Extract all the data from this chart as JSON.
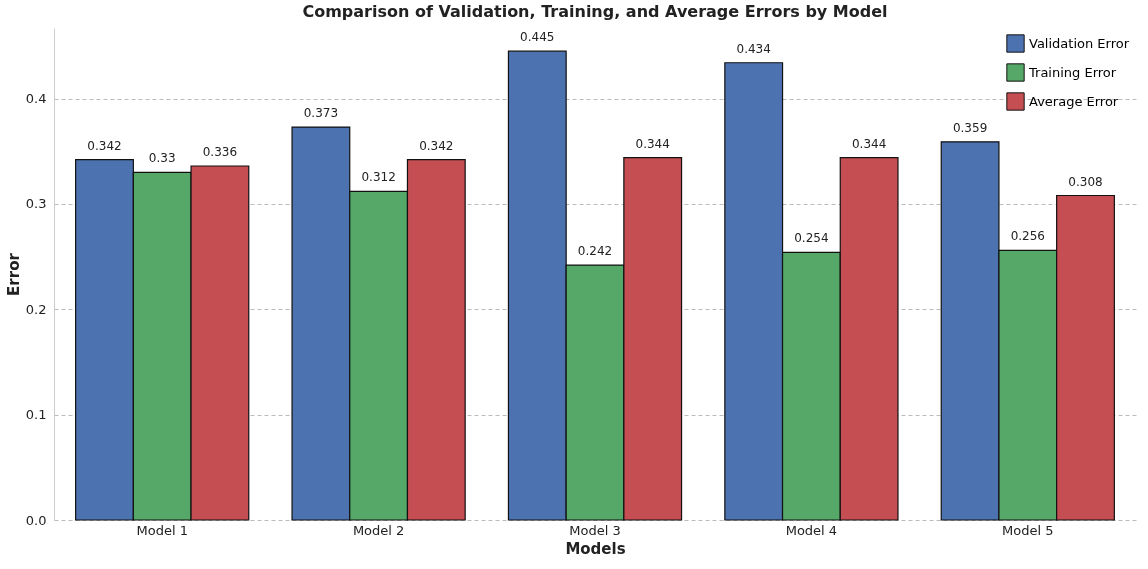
{
  "chart_data": {
    "type": "bar",
    "title": "Comparison of Validation, Training, and Average Errors by Model",
    "xlabel": "Models",
    "ylabel": "Error",
    "categories": [
      "Model 1",
      "Model 2",
      "Model 3",
      "Model 4",
      "Model 5"
    ],
    "series": [
      {
        "name": "Validation Error",
        "color": "#4c72b0",
        "values": [
          0.342,
          0.373,
          0.445,
          0.434,
          0.359
        ]
      },
      {
        "name": "Training Error",
        "color": "#55a868",
        "values": [
          0.33,
          0.312,
          0.242,
          0.254,
          0.256
        ]
      },
      {
        "name": "Average Error",
        "color": "#c44e52",
        "values": [
          0.336,
          0.342,
          0.344,
          0.344,
          0.308
        ]
      }
    ],
    "ylim": [
      0,
      0.467
    ],
    "yticks": [
      {
        "value": 0,
        "label": "0.0"
      },
      0.1,
      0.2,
      0.3,
      0.4
    ],
    "grid": "y",
    "legend": "top right",
    "data_labels": true
  }
}
